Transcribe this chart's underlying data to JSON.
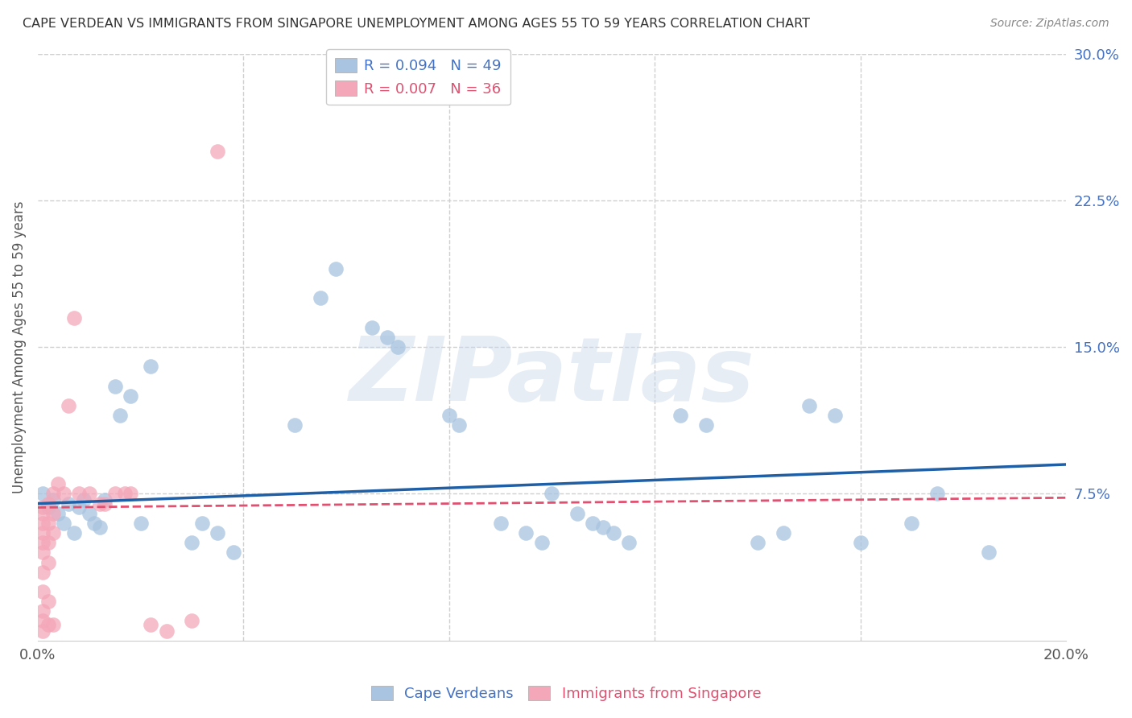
{
  "title": "CAPE VERDEAN VS IMMIGRANTS FROM SINGAPORE UNEMPLOYMENT AMONG AGES 55 TO 59 YEARS CORRELATION CHART",
  "source": "Source: ZipAtlas.com",
  "ylabel": "Unemployment Among Ages 55 to 59 years",
  "xlim": [
    0.0,
    0.2
  ],
  "ylim": [
    0.0,
    0.3
  ],
  "xticks": [
    0.0,
    0.04,
    0.08,
    0.12,
    0.16,
    0.2
  ],
  "xtick_labels": [
    "0.0%",
    "",
    "",
    "",
    "",
    "20.0%"
  ],
  "yticks_right": [
    0.0,
    0.075,
    0.15,
    0.225,
    0.3
  ],
  "ytick_labels_right": [
    "",
    "7.5%",
    "15.0%",
    "22.5%",
    "30.0%"
  ],
  "blue_R": "0.094",
  "blue_N": "49",
  "pink_R": "0.007",
  "pink_N": "36",
  "blue_color": "#a8c4e0",
  "pink_color": "#f4a7b9",
  "blue_line_color": "#1f5fa6",
  "pink_line_color": "#e05070",
  "legend_label_blue": "Cape Verdeans",
  "legend_label_pink": "Immigrants from Singapore",
  "watermark": "ZIPatlas",
  "blue_scatter_x": [
    0.001,
    0.002,
    0.003,
    0.004,
    0.005,
    0.006,
    0.007,
    0.008,
    0.009,
    0.01,
    0.011,
    0.012,
    0.013,
    0.015,
    0.016,
    0.018,
    0.02,
    0.022,
    0.03,
    0.032,
    0.035,
    0.038,
    0.05,
    0.055,
    0.058,
    0.065,
    0.068,
    0.07,
    0.08,
    0.082,
    0.09,
    0.095,
    0.098,
    0.1,
    0.105,
    0.108,
    0.11,
    0.112,
    0.115,
    0.125,
    0.13,
    0.14,
    0.145,
    0.15,
    0.155,
    0.16,
    0.17,
    0.175,
    0.185
  ],
  "blue_scatter_y": [
    0.075,
    0.068,
    0.072,
    0.065,
    0.06,
    0.07,
    0.055,
    0.068,
    0.072,
    0.065,
    0.06,
    0.058,
    0.072,
    0.13,
    0.115,
    0.125,
    0.06,
    0.14,
    0.05,
    0.06,
    0.055,
    0.045,
    0.11,
    0.175,
    0.19,
    0.16,
    0.155,
    0.15,
    0.115,
    0.11,
    0.06,
    0.055,
    0.05,
    0.075,
    0.065,
    0.06,
    0.058,
    0.055,
    0.05,
    0.115,
    0.11,
    0.05,
    0.055,
    0.12,
    0.115,
    0.05,
    0.06,
    0.075,
    0.045
  ],
  "pink_scatter_x": [
    0.001,
    0.001,
    0.001,
    0.001,
    0.001,
    0.001,
    0.001,
    0.001,
    0.001,
    0.001,
    0.001,
    0.002,
    0.002,
    0.002,
    0.002,
    0.002,
    0.002,
    0.003,
    0.003,
    0.003,
    0.003,
    0.004,
    0.005,
    0.006,
    0.007,
    0.008,
    0.01,
    0.012,
    0.013,
    0.015,
    0.017,
    0.018,
    0.022,
    0.025,
    0.03,
    0.035
  ],
  "pink_scatter_y": [
    0.065,
    0.068,
    0.06,
    0.055,
    0.05,
    0.045,
    0.035,
    0.025,
    0.015,
    0.01,
    0.005,
    0.07,
    0.06,
    0.05,
    0.04,
    0.02,
    0.008,
    0.075,
    0.065,
    0.055,
    0.008,
    0.08,
    0.075,
    0.12,
    0.165,
    0.075,
    0.075,
    0.07,
    0.07,
    0.075,
    0.075,
    0.075,
    0.008,
    0.005,
    0.01,
    0.25
  ],
  "blue_line_start_y": 0.07,
  "blue_line_end_y": 0.09,
  "pink_line_start_y": 0.068,
  "pink_line_end_y": 0.073
}
